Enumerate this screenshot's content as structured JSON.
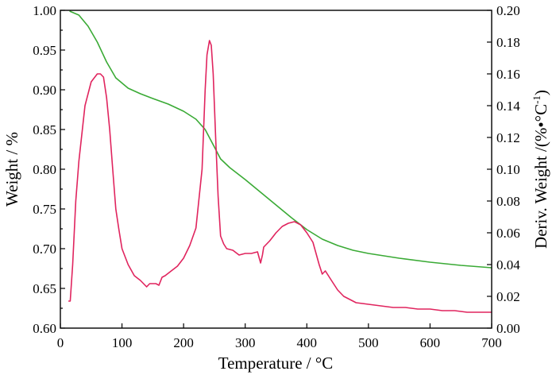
{
  "chart_data": {
    "type": "line",
    "xlabel": "Temperature / °C",
    "ylabel_left": "Weight / %",
    "ylabel_right_prefix": "Deriv. Weight /(%•°C",
    "ylabel_right_sup": "-1",
    "ylabel_right_suffix": ")",
    "xlim": [
      0,
      700
    ],
    "ylim_left": [
      0.6,
      1.0
    ],
    "ylim_right": [
      0.0,
      0.2
    ],
    "x_ticks": [
      "0",
      "100",
      "200",
      "300",
      "400",
      "500",
      "600",
      "700"
    ],
    "y_left_ticks": [
      "0.60",
      "0.65",
      "0.70",
      "0.75",
      "0.80",
      "0.85",
      "0.90",
      "0.95",
      "1.00"
    ],
    "y_right_ticks": [
      "0.00",
      "0.02",
      "0.04",
      "0.06",
      "0.08",
      "0.10",
      "0.12",
      "0.14",
      "0.16",
      "0.18",
      "0.20"
    ],
    "grid": false,
    "series": [
      {
        "axis": "left",
        "color": "#3aaa35",
        "x": [
          15,
          30,
          45,
          60,
          75,
          90,
          110,
          130,
          150,
          175,
          200,
          220,
          235,
          250,
          260,
          275,
          300,
          325,
          350,
          375,
          400,
          425,
          450,
          475,
          500,
          550,
          600,
          650,
          700
        ],
        "y": [
          0.999,
          0.994,
          0.98,
          0.96,
          0.935,
          0.915,
          0.902,
          0.895,
          0.889,
          0.882,
          0.873,
          0.863,
          0.85,
          0.828,
          0.813,
          0.802,
          0.787,
          0.771,
          0.755,
          0.739,
          0.724,
          0.712,
          0.704,
          0.698,
          0.694,
          0.688,
          0.683,
          0.679,
          0.676
        ]
      },
      {
        "axis": "right",
        "color": "#e0245e",
        "x": [
          13,
          16,
          20,
          25,
          30,
          40,
          50,
          60,
          65,
          70,
          75,
          80,
          85,
          90,
          95,
          100,
          110,
          120,
          130,
          140,
          145,
          150,
          155,
          160,
          165,
          170,
          180,
          190,
          200,
          210,
          220,
          230,
          235,
          238,
          242,
          245,
          248,
          252,
          256,
          260,
          265,
          270,
          280,
          290,
          300,
          310,
          320,
          325,
          328,
          330,
          340,
          350,
          360,
          370,
          380,
          390,
          400,
          410,
          420,
          425,
          430,
          440,
          450,
          460,
          470,
          480,
          500,
          520,
          540,
          560,
          580,
          600,
          620,
          640,
          660,
          680,
          700
        ],
        "y": [
          0.017,
          0.017,
          0.04,
          0.08,
          0.105,
          0.14,
          0.155,
          0.16,
          0.16,
          0.158,
          0.145,
          0.125,
          0.1,
          0.075,
          0.062,
          0.05,
          0.04,
          0.033,
          0.03,
          0.026,
          0.028,
          0.028,
          0.028,
          0.027,
          0.032,
          0.033,
          0.036,
          0.039,
          0.044,
          0.052,
          0.063,
          0.1,
          0.15,
          0.172,
          0.181,
          0.178,
          0.16,
          0.12,
          0.083,
          0.058,
          0.053,
          0.05,
          0.049,
          0.046,
          0.047,
          0.047,
          0.048,
          0.041,
          0.046,
          0.051,
          0.055,
          0.06,
          0.064,
          0.066,
          0.067,
          0.065,
          0.06,
          0.054,
          0.04,
          0.034,
          0.036,
          0.03,
          0.024,
          0.02,
          0.018,
          0.016,
          0.015,
          0.014,
          0.013,
          0.013,
          0.012,
          0.012,
          0.011,
          0.011,
          0.01,
          0.01,
          0.01
        ]
      }
    ]
  }
}
